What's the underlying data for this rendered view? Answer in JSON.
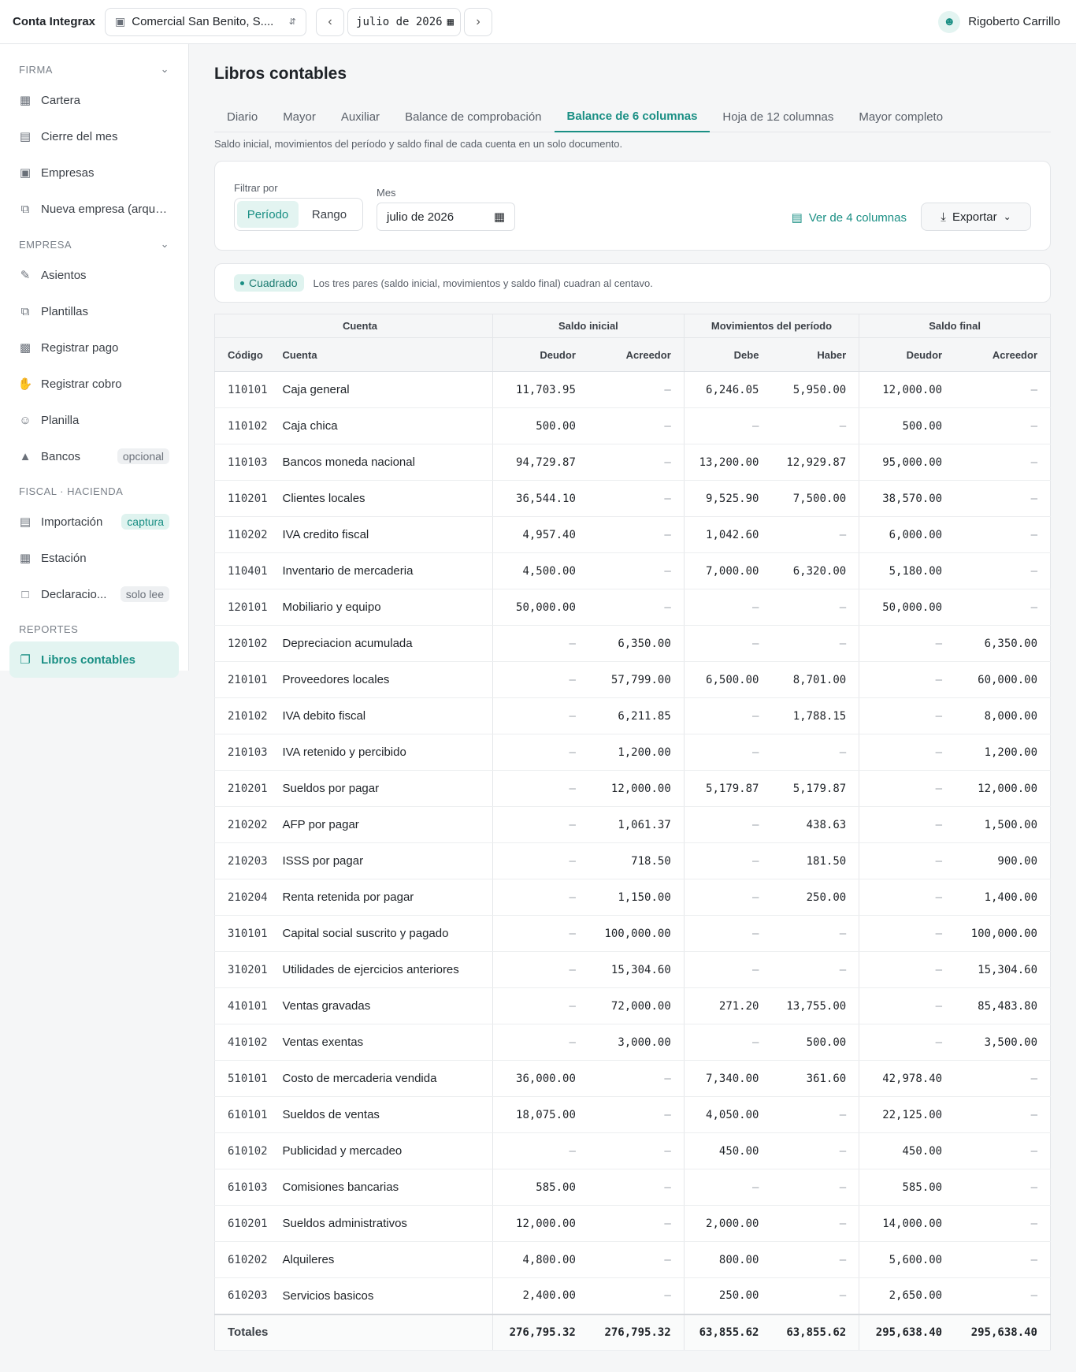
{
  "topbar": {
    "brand": "Conta Integrax",
    "company": "Comercial San Benito, S....",
    "month": "julio de 2026",
    "user": "Rigoberto Carrillo"
  },
  "sidebar": {
    "sections": [
      {
        "title": "FIRMA",
        "chevron": true,
        "items": [
          {
            "label": "Cartera",
            "icon": "grid-icon"
          },
          {
            "label": "Cierre del mes",
            "icon": "calendar-icon"
          },
          {
            "label": "Empresas",
            "icon": "building-icon"
          },
          {
            "label": "Nueva empresa (arque...",
            "icon": "copy-icon"
          }
        ]
      },
      {
        "title": "EMPRESA",
        "chevron": true,
        "items": [
          {
            "label": "Asientos",
            "icon": "edit-icon"
          },
          {
            "label": "Plantillas",
            "icon": "copy-icon"
          },
          {
            "label": "Registrar pago",
            "icon": "wallet-icon"
          },
          {
            "label": "Registrar cobro",
            "icon": "hand-coins-icon"
          },
          {
            "label": "Planilla",
            "icon": "users-icon"
          },
          {
            "label": "Bancos",
            "icon": "bank-icon",
            "badge": "opcional"
          }
        ]
      },
      {
        "title": "FISCAL · HACIENDA",
        "chevron": false,
        "items": [
          {
            "label": "Importación",
            "icon": "file-import-icon",
            "badge": "captura",
            "badge_style": "teal"
          },
          {
            "label": "Estación",
            "icon": "table-icon"
          },
          {
            "label": "Declaracio...",
            "icon": "file-icon",
            "badge": "solo lee"
          }
        ]
      },
      {
        "title": "REPORTES",
        "chevron": false,
        "items": [
          {
            "label": "Libros contables",
            "icon": "book-icon",
            "active": true
          }
        ]
      }
    ]
  },
  "page": {
    "title": "Libros contables",
    "tabs": [
      "Diario",
      "Mayor",
      "Auxiliar",
      "Balance de comprobación",
      "Balance de 6 columnas",
      "Hoja de 12 columnas",
      "Mayor completo"
    ],
    "active_tab": 4,
    "subtitle": "Saldo inicial, movimientos del período y saldo final de cada cuenta en un solo documento."
  },
  "filters": {
    "filter_label": "Filtrar por",
    "periodo": "Período",
    "rango": "Rango",
    "mes_label": "Mes",
    "mes_value": "julio de 2026",
    "ver4": "Ver de 4 columnas",
    "exportar": "Exportar"
  },
  "status": {
    "pill": "Cuadrado",
    "text": "Los tres pares (saldo inicial, movimientos y saldo final) cuadran al centavo."
  },
  "table": {
    "groups": [
      "Cuenta",
      "Saldo inicial",
      "Movimientos del período",
      "Saldo final"
    ],
    "headers": [
      "Código",
      "Cuenta",
      "Deudor",
      "Acreedor",
      "Debe",
      "Haber",
      "Deudor",
      "Acreedor"
    ],
    "rows": [
      [
        "110101",
        "Caja general",
        "11,703.95",
        "—",
        "6,246.05",
        "5,950.00",
        "12,000.00",
        "—"
      ],
      [
        "110102",
        "Caja chica",
        "500.00",
        "—",
        "—",
        "—",
        "500.00",
        "—"
      ],
      [
        "110103",
        "Bancos moneda nacional",
        "94,729.87",
        "—",
        "13,200.00",
        "12,929.87",
        "95,000.00",
        "—"
      ],
      [
        "110201",
        "Clientes locales",
        "36,544.10",
        "—",
        "9,525.90",
        "7,500.00",
        "38,570.00",
        "—"
      ],
      [
        "110202",
        "IVA credito fiscal",
        "4,957.40",
        "—",
        "1,042.60",
        "—",
        "6,000.00",
        "—"
      ],
      [
        "110401",
        "Inventario de mercaderia",
        "4,500.00",
        "—",
        "7,000.00",
        "6,320.00",
        "5,180.00",
        "—"
      ],
      [
        "120101",
        "Mobiliario y equipo",
        "50,000.00",
        "—",
        "—",
        "—",
        "50,000.00",
        "—"
      ],
      [
        "120102",
        "Depreciacion acumulada",
        "—",
        "6,350.00",
        "—",
        "—",
        "—",
        "6,350.00"
      ],
      [
        "210101",
        "Proveedores locales",
        "—",
        "57,799.00",
        "6,500.00",
        "8,701.00",
        "—",
        "60,000.00"
      ],
      [
        "210102",
        "IVA debito fiscal",
        "—",
        "6,211.85",
        "—",
        "1,788.15",
        "—",
        "8,000.00"
      ],
      [
        "210103",
        "IVA retenido y percibido",
        "—",
        "1,200.00",
        "—",
        "—",
        "—",
        "1,200.00"
      ],
      [
        "210201",
        "Sueldos por pagar",
        "—",
        "12,000.00",
        "5,179.87",
        "5,179.87",
        "—",
        "12,000.00"
      ],
      [
        "210202",
        "AFP por pagar",
        "—",
        "1,061.37",
        "—",
        "438.63",
        "—",
        "1,500.00"
      ],
      [
        "210203",
        "ISSS por pagar",
        "—",
        "718.50",
        "—",
        "181.50",
        "—",
        "900.00"
      ],
      [
        "210204",
        "Renta retenida por pagar",
        "—",
        "1,150.00",
        "—",
        "250.00",
        "—",
        "1,400.00"
      ],
      [
        "310101",
        "Capital social suscrito y pagado",
        "—",
        "100,000.00",
        "—",
        "—",
        "—",
        "100,000.00"
      ],
      [
        "310201",
        "Utilidades de ejercicios anteriores",
        "—",
        "15,304.60",
        "—",
        "—",
        "—",
        "15,304.60"
      ],
      [
        "410101",
        "Ventas gravadas",
        "—",
        "72,000.00",
        "271.20",
        "13,755.00",
        "—",
        "85,483.80"
      ],
      [
        "410102",
        "Ventas exentas",
        "—",
        "3,000.00",
        "—",
        "500.00",
        "—",
        "3,500.00"
      ],
      [
        "510101",
        "Costo de mercaderia vendida",
        "36,000.00",
        "—",
        "7,340.00",
        "361.60",
        "42,978.40",
        "—"
      ],
      [
        "610101",
        "Sueldos de ventas",
        "18,075.00",
        "—",
        "4,050.00",
        "—",
        "22,125.00",
        "—"
      ],
      [
        "610102",
        "Publicidad y mercadeo",
        "—",
        "—",
        "450.00",
        "—",
        "450.00",
        "—"
      ],
      [
        "610103",
        "Comisiones bancarias",
        "585.00",
        "—",
        "—",
        "—",
        "585.00",
        "—"
      ],
      [
        "610201",
        "Sueldos administrativos",
        "12,000.00",
        "—",
        "2,000.00",
        "—",
        "14,000.00",
        "—"
      ],
      [
        "610202",
        "Alquileres",
        "4,800.00",
        "—",
        "800.00",
        "—",
        "5,600.00",
        "—"
      ],
      [
        "610203",
        "Servicios basicos",
        "2,400.00",
        "—",
        "250.00",
        "—",
        "2,650.00",
        "—"
      ]
    ],
    "totals_label": "Totales",
    "totals": [
      "276,795.32",
      "276,795.32",
      "63,855.62",
      "63,855.62",
      "295,638.40",
      "295,638.40"
    ]
  }
}
